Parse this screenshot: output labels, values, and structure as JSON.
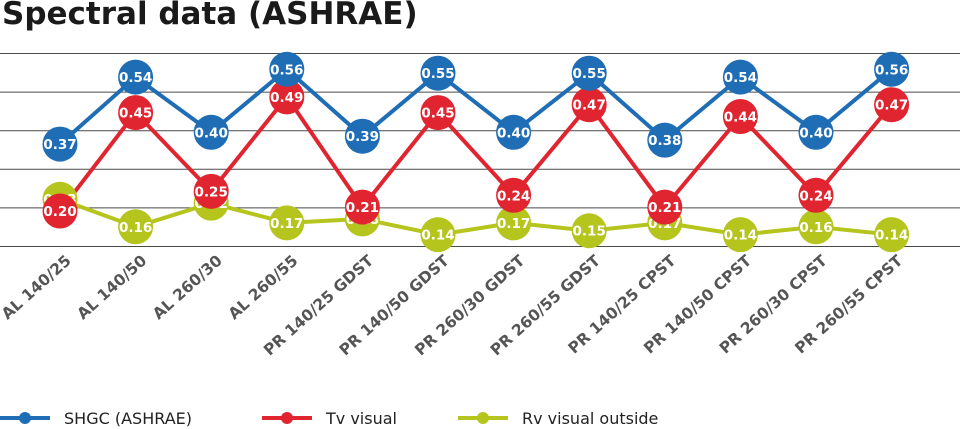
{
  "chart_data": {
    "type": "line",
    "title": "Spectral data (ASHRAE)",
    "xlabel": "",
    "ylabel": "",
    "categories": [
      "AL 140/25",
      "AL 140/50",
      "AL 260/30",
      "AL 260/55",
      "PR 140/25 GDST",
      "PR 140/50 GDST",
      "PR 260/30 GDST",
      "PR 260/55 GDST",
      "PR 140/25 CPST",
      "PR 140/50 CPST",
      "PR 260/30 CPST",
      "PR 260/55 CPST"
    ],
    "ylim": [
      0.11,
      0.6
    ],
    "grid": true,
    "legend_position": "bottom",
    "series": [
      {
        "name": "SHGC (ASHRAE)",
        "color": "#1f6db5",
        "values": [
          0.37,
          0.54,
          0.4,
          0.56,
          0.39,
          0.55,
          0.4,
          0.55,
          0.38,
          0.54,
          0.4,
          0.56
        ],
        "labels": [
          "0.37",
          "0.54",
          "0.40",
          "0.56",
          "0.39",
          "0.55",
          "0.40",
          "0.55",
          "0.38",
          "0.54",
          "0.40",
          "0.56"
        ]
      },
      {
        "name": "Tv visual",
        "color": "#e02530",
        "values": [
          0.2,
          0.45,
          0.25,
          0.49,
          0.21,
          0.45,
          0.24,
          0.47,
          0.21,
          0.44,
          0.24,
          0.47
        ],
        "labels": [
          "0.20",
          "0.45",
          "0.25",
          "0.49",
          "0.21",
          "0.45",
          "0.24",
          "0.47",
          "0.21",
          "0.44",
          "0.24",
          "0.47"
        ]
      },
      {
        "name": "Rv visual outside",
        "color": "#b5c51d",
        "values": [
          0.23,
          0.16,
          0.22,
          0.17,
          0.18,
          0.14,
          0.17,
          0.15,
          0.17,
          0.14,
          0.16,
          0.14
        ],
        "labels": [
          "0.23",
          "0.16",
          "0.22",
          "0.17",
          "0.18",
          "0.14",
          "0.17",
          "0.15",
          "0.17",
          "0.14",
          "0.16",
          "0.14"
        ]
      }
    ]
  }
}
